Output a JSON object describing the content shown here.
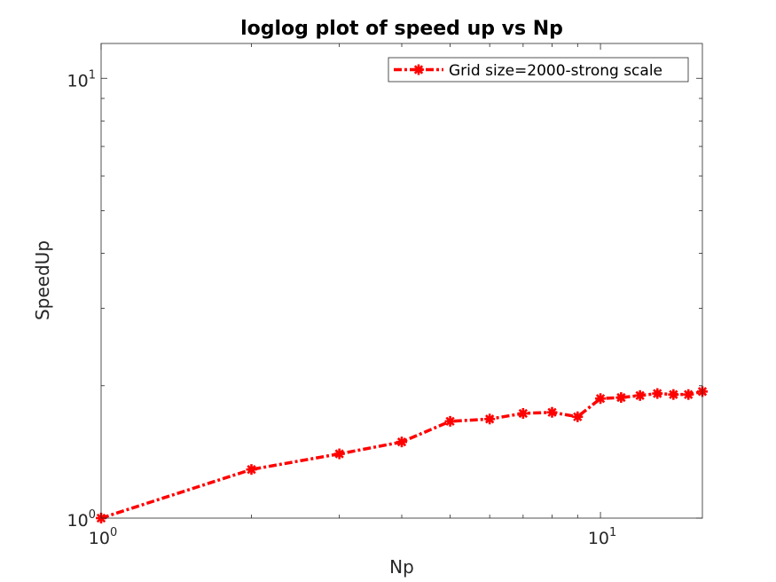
{
  "chart_data": {
    "type": "line",
    "scale": "loglog",
    "title": "loglog plot of speed up vs Np",
    "xlabel": "Np",
    "ylabel": "SpeedUp",
    "xlim": [
      1,
      16
    ],
    "ylim": [
      1,
      12
    ],
    "x_ticks": [
      {
        "base": "10",
        "exp": "0",
        "value": 1
      },
      {
        "base": "10",
        "exp": "1",
        "value": 10
      }
    ],
    "y_ticks": [
      {
        "base": "10",
        "exp": "0",
        "value": 1
      },
      {
        "base": "10",
        "exp": "1",
        "value": 10
      }
    ],
    "legend_position": "top-right",
    "series": [
      {
        "name": "Grid size=2000-strong scale",
        "color": "#ff0000",
        "line_style": "dash-dot",
        "marker": "asterisk",
        "x": [
          1,
          2,
          3,
          4,
          5,
          6,
          7,
          8,
          9,
          10,
          11,
          12,
          13,
          14,
          15,
          16
        ],
        "y": [
          1.0,
          1.29,
          1.4,
          1.49,
          1.66,
          1.68,
          1.73,
          1.74,
          1.7,
          1.87,
          1.88,
          1.9,
          1.92,
          1.91,
          1.91,
          1.94
        ]
      }
    ]
  }
}
